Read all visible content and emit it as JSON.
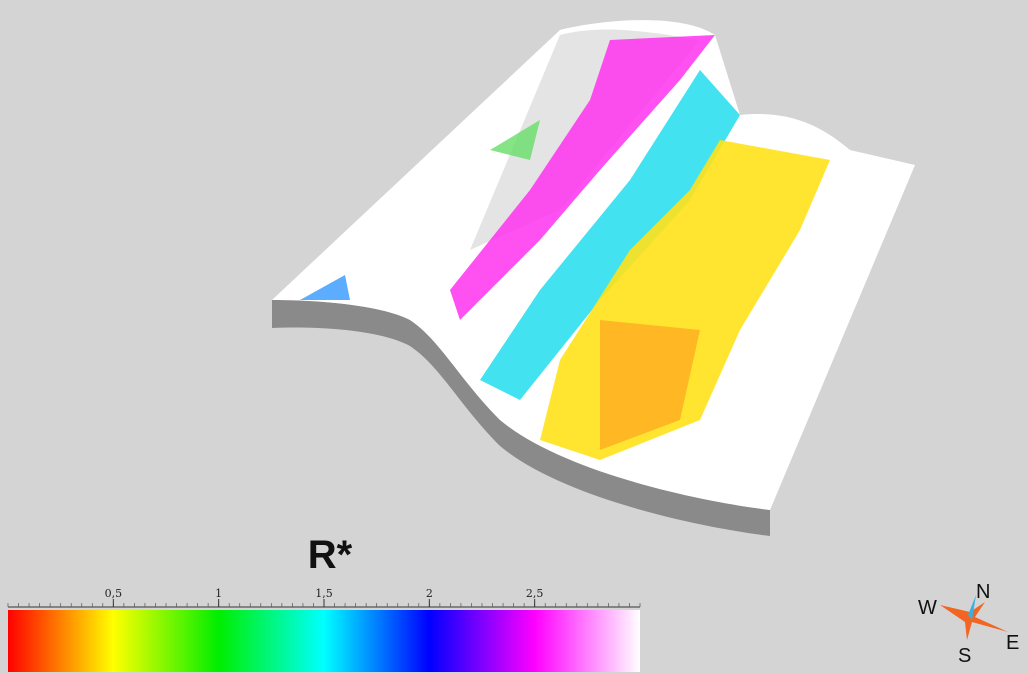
{
  "colorbar": {
    "title": "R*",
    "range": [
      0,
      3
    ],
    "ticks": [
      {
        "value": 0.5,
        "label": "0,5"
      },
      {
        "value": 1,
        "label": "1"
      },
      {
        "value": 1.5,
        "label": "1,5"
      },
      {
        "value": 2,
        "label": "2"
      },
      {
        "value": 2.5,
        "label": "2,5"
      }
    ],
    "colors": [
      "#ff0000",
      "#ffff00",
      "#00ee00",
      "#00ffff",
      "#0000ff",
      "#ff00ff",
      "#ffffff"
    ]
  },
  "compass": {
    "north": "N",
    "south": "S",
    "east": "E",
    "west": "W"
  }
}
